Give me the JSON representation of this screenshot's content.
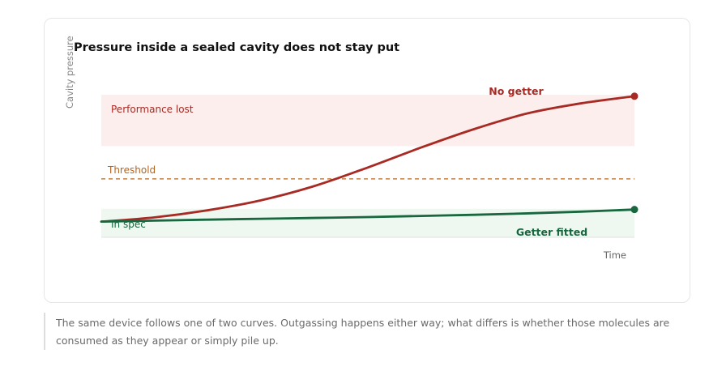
{
  "chart_data": {
    "type": "line",
    "title": "Pressure inside a sealed cavity does not stay put",
    "xlabel": "Time",
    "ylabel": "Cavity pressure",
    "xlim": [
      0,
      10
    ],
    "ylim": [
      0,
      10
    ],
    "grid": false,
    "bands": [
      {
        "label": "Performance lost",
        "y_from": 6.4,
        "y_to": 10,
        "color": "#fbeeec"
      },
      {
        "label": "In spec",
        "y_from": 0,
        "y_to": 2.0,
        "color": "#eef7f0"
      }
    ],
    "threshold": {
      "label": "Threshold",
      "y": 4.1,
      "color": "#b5651d"
    },
    "series": [
      {
        "name": "No getter",
        "color": "#a82a24",
        "x": [
          0,
          1,
          2,
          3,
          4,
          5,
          6,
          7,
          8,
          9,
          10
        ],
        "y": [
          1.1,
          1.4,
          1.9,
          2.6,
          3.6,
          4.9,
          6.3,
          7.6,
          8.7,
          9.4,
          9.9
        ]
      },
      {
        "name": "Getter fitted",
        "color": "#18673e",
        "x": [
          0,
          1,
          2,
          3,
          4,
          5,
          6,
          7,
          8,
          9,
          10
        ],
        "y": [
          1.1,
          1.17,
          1.24,
          1.3,
          1.36,
          1.42,
          1.5,
          1.58,
          1.68,
          1.8,
          1.95
        ]
      }
    ]
  },
  "caption": "The same device follows one of two curves. Outgassing happens either way; what differs is whether those molecules are consumed as they appear or simply pile up."
}
